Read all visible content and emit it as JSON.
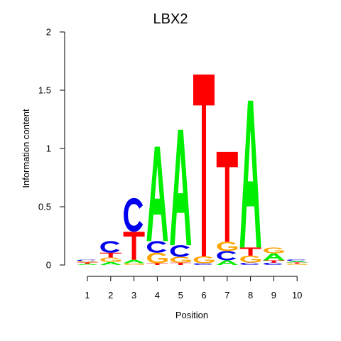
{
  "chart_data": {
    "type": "sequence-logo",
    "title": "LBX2",
    "xlabel": "Position",
    "ylabel": "Information content",
    "ylim": [
      0,
      2
    ],
    "yticks": [
      "0",
      "0.5",
      "1",
      "1.5",
      "2"
    ],
    "positions": [
      "1",
      "2",
      "3",
      "4",
      "5",
      "6",
      "7",
      "8",
      "9",
      "10"
    ],
    "colors": {
      "A": "#00ee00",
      "C": "#0000ee",
      "G": "#ffa500",
      "T": "#ff0000"
    },
    "columns": [
      [
        {
          "base": "A",
          "bits": 0.01
        },
        {
          "base": "T",
          "bits": 0.012
        },
        {
          "base": "G",
          "bits": 0.012
        },
        {
          "base": "C",
          "bits": 0.012
        }
      ],
      [
        {
          "base": "A",
          "bits": 0.025
        },
        {
          "base": "G",
          "bits": 0.04
        },
        {
          "base": "T",
          "bits": 0.04
        },
        {
          "base": "C",
          "bits": 0.1
        }
      ],
      [
        {
          "base": "G",
          "bits": 0.015
        },
        {
          "base": "A",
          "bits": 0.03
        },
        {
          "base": "T",
          "bits": 0.24
        },
        {
          "base": "C",
          "bits": 0.29
        }
      ],
      [
        {
          "base": "T",
          "bits": 0.015
        },
        {
          "base": "G",
          "bits": 0.09
        },
        {
          "base": "C",
          "bits": 0.1
        },
        {
          "base": "A",
          "bits": 0.81
        }
      ],
      [
        {
          "base": "T",
          "bits": 0.02
        },
        {
          "base": "G",
          "bits": 0.05
        },
        {
          "base": "C",
          "bits": 0.1
        },
        {
          "base": "A",
          "bits": 0.99
        }
      ],
      [
        {
          "base": "C",
          "bits": 0.015
        },
        {
          "base": "G",
          "bits": 0.06
        },
        {
          "base": "T",
          "bits": 1.56
        }
      ],
      [
        {
          "base": "A",
          "bits": 0.04
        },
        {
          "base": "C",
          "bits": 0.08
        },
        {
          "base": "G",
          "bits": 0.08
        },
        {
          "base": "T",
          "bits": 0.77
        }
      ],
      [
        {
          "base": "C",
          "bits": 0.02
        },
        {
          "base": "G",
          "bits": 0.06
        },
        {
          "base": "T",
          "bits": 0.07
        },
        {
          "base": "A",
          "bits": 1.26
        }
      ],
      [
        {
          "base": "C",
          "bits": 0.02
        },
        {
          "base": "T",
          "bits": 0.02
        },
        {
          "base": "A",
          "bits": 0.06
        },
        {
          "base": "G",
          "bits": 0.05
        }
      ],
      [
        {
          "base": "G",
          "bits": 0.012
        },
        {
          "base": "T",
          "bits": 0.01
        },
        {
          "base": "A",
          "bits": 0.012
        },
        {
          "base": "C",
          "bits": 0.014
        }
      ]
    ]
  }
}
